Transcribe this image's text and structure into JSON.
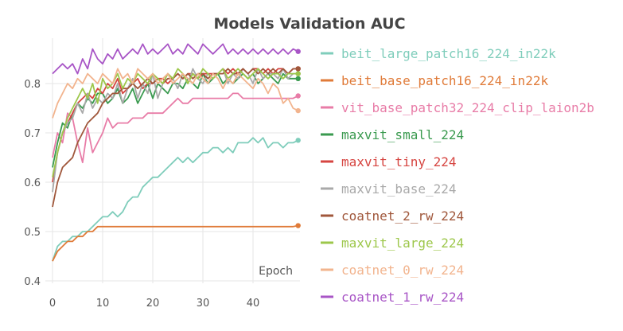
{
  "chart_data": {
    "type": "line",
    "title": "Models Validation AUC",
    "xlabel": "Epoch",
    "ylabel": "",
    "xlim": [
      0,
      50
    ],
    "ylim": [
      0.4,
      0.92
    ],
    "xticks": [
      0,
      10,
      20,
      30,
      40
    ],
    "yticks": [
      0.4,
      0.5,
      0.6,
      0.7,
      0.8
    ],
    "grid": true,
    "legend_position": "right",
    "series": [
      {
        "name": "beit_large_patch16_224_in22k",
        "color": "#7fcdbb",
        "values": [
          0.44,
          0.47,
          0.48,
          0.48,
          0.49,
          0.49,
          0.5,
          0.5,
          0.51,
          0.52,
          0.53,
          0.53,
          0.54,
          0.53,
          0.54,
          0.56,
          0.57,
          0.57,
          0.59,
          0.6,
          0.61,
          0.61,
          0.62,
          0.63,
          0.64,
          0.65,
          0.64,
          0.65,
          0.64,
          0.65,
          0.66,
          0.66,
          0.67,
          0.67,
          0.66,
          0.67,
          0.66,
          0.68,
          0.68,
          0.68,
          0.69,
          0.68,
          0.69,
          0.67,
          0.68,
          0.68,
          0.67,
          0.68,
          0.68,
          0.685
        ]
      },
      {
        "name": "beit_base_patch16_224_in22k",
        "color": "#e07b39",
        "values": [
          0.44,
          0.46,
          0.47,
          0.48,
          0.48,
          0.49,
          0.49,
          0.5,
          0.5,
          0.51,
          0.51,
          0.51,
          0.51,
          0.51,
          0.51,
          0.51,
          0.51,
          0.51,
          0.51,
          0.51,
          0.51,
          0.51,
          0.51,
          0.51,
          0.51,
          0.51,
          0.51,
          0.51,
          0.51,
          0.51,
          0.51,
          0.51,
          0.51,
          0.51,
          0.51,
          0.51,
          0.51,
          0.51,
          0.51,
          0.51,
          0.51,
          0.51,
          0.51,
          0.51,
          0.51,
          0.51,
          0.51,
          0.51,
          0.51,
          0.512
        ]
      },
      {
        "name": "vit_base_patch32_224_clip_laion2b",
        "color": "#e87ca7",
        "values": [
          0.65,
          0.7,
          0.68,
          0.74,
          0.73,
          0.68,
          0.64,
          0.71,
          0.66,
          0.68,
          0.7,
          0.73,
          0.71,
          0.72,
          0.72,
          0.72,
          0.73,
          0.73,
          0.73,
          0.74,
          0.74,
          0.74,
          0.74,
          0.75,
          0.76,
          0.77,
          0.76,
          0.76,
          0.77,
          0.77,
          0.77,
          0.77,
          0.77,
          0.77,
          0.77,
          0.77,
          0.78,
          0.78,
          0.77,
          0.77,
          0.77,
          0.77,
          0.77,
          0.77,
          0.77,
          0.77,
          0.77,
          0.77,
          0.77,
          0.775
        ]
      },
      {
        "name": "maxvit_small_224",
        "color": "#3a9a4f",
        "values": [
          0.63,
          0.68,
          0.72,
          0.71,
          0.74,
          0.76,
          0.75,
          0.77,
          0.76,
          0.78,
          0.78,
          0.76,
          0.77,
          0.79,
          0.76,
          0.77,
          0.79,
          0.76,
          0.78,
          0.8,
          0.77,
          0.8,
          0.79,
          0.78,
          0.8,
          0.8,
          0.79,
          0.81,
          0.8,
          0.79,
          0.82,
          0.8,
          0.81,
          0.82,
          0.8,
          0.81,
          0.8,
          0.81,
          0.82,
          0.81,
          0.82,
          0.8,
          0.81,
          0.82,
          0.81,
          0.8,
          0.82,
          0.81,
          0.81,
          0.81
        ]
      },
      {
        "name": "maxvit_tiny_224",
        "color": "#d64541",
        "values": [
          0.6,
          0.66,
          0.7,
          0.72,
          0.74,
          0.76,
          0.77,
          0.78,
          0.77,
          0.79,
          0.78,
          0.8,
          0.79,
          0.81,
          0.78,
          0.79,
          0.8,
          0.81,
          0.79,
          0.8,
          0.8,
          0.81,
          0.81,
          0.8,
          0.81,
          0.82,
          0.81,
          0.82,
          0.82,
          0.81,
          0.82,
          0.82,
          0.82,
          0.82,
          0.83,
          0.82,
          0.83,
          0.82,
          0.83,
          0.82,
          0.83,
          0.83,
          0.82,
          0.83,
          0.82,
          0.83,
          0.83,
          0.82,
          0.83,
          0.83
        ]
      },
      {
        "name": "maxvit_base_224",
        "color": "#a9a9a9",
        "values": [
          0.58,
          0.66,
          0.7,
          0.72,
          0.73,
          0.76,
          0.74,
          0.78,
          0.75,
          0.77,
          0.76,
          0.78,
          0.77,
          0.8,
          0.76,
          0.79,
          0.81,
          0.77,
          0.8,
          0.78,
          0.82,
          0.77,
          0.8,
          0.82,
          0.81,
          0.79,
          0.82,
          0.8,
          0.83,
          0.81,
          0.8,
          0.82,
          0.81,
          0.82,
          0.83,
          0.8,
          0.82,
          0.81,
          0.83,
          0.82,
          0.8,
          0.83,
          0.81,
          0.82,
          0.82,
          0.81,
          0.83,
          0.81,
          0.82,
          0.82
        ]
      },
      {
        "name": "coatnet_2_rw_224",
        "color": "#a0573b",
        "values": [
          0.55,
          0.6,
          0.63,
          0.64,
          0.65,
          0.68,
          0.7,
          0.72,
          0.73,
          0.74,
          0.76,
          0.77,
          0.78,
          0.78,
          0.79,
          0.79,
          0.8,
          0.79,
          0.8,
          0.81,
          0.8,
          0.81,
          0.8,
          0.81,
          0.81,
          0.82,
          0.81,
          0.82,
          0.81,
          0.82,
          0.82,
          0.81,
          0.82,
          0.82,
          0.82,
          0.83,
          0.82,
          0.82,
          0.83,
          0.82,
          0.83,
          0.82,
          0.83,
          0.82,
          0.83,
          0.82,
          0.83,
          0.82,
          0.83,
          0.83
        ]
      },
      {
        "name": "maxvit_large_224",
        "color": "#9dc74b",
        "values": [
          0.61,
          0.66,
          0.7,
          0.73,
          0.75,
          0.77,
          0.79,
          0.77,
          0.8,
          0.76,
          0.81,
          0.79,
          0.8,
          0.82,
          0.79,
          0.81,
          0.8,
          0.82,
          0.81,
          0.8,
          0.82,
          0.81,
          0.8,
          0.82,
          0.81,
          0.83,
          0.82,
          0.8,
          0.82,
          0.81,
          0.83,
          0.82,
          0.81,
          0.82,
          0.83,
          0.81,
          0.82,
          0.83,
          0.82,
          0.81,
          0.82,
          0.83,
          0.82,
          0.81,
          0.82,
          0.82,
          0.81,
          0.82,
          0.82,
          0.82
        ]
      },
      {
        "name": "coatnet_0_rw_224",
        "color": "#f2b48e",
        "values": [
          0.73,
          0.76,
          0.78,
          0.8,
          0.79,
          0.81,
          0.8,
          0.82,
          0.81,
          0.8,
          0.82,
          0.81,
          0.8,
          0.83,
          0.81,
          0.82,
          0.8,
          0.83,
          0.82,
          0.81,
          0.82,
          0.8,
          0.81,
          0.82,
          0.8,
          0.81,
          0.82,
          0.81,
          0.8,
          0.82,
          0.81,
          0.8,
          0.82,
          0.81,
          0.79,
          0.81,
          0.8,
          0.82,
          0.81,
          0.8,
          0.79,
          0.81,
          0.8,
          0.78,
          0.8,
          0.79,
          0.76,
          0.77,
          0.75,
          0.745
        ]
      },
      {
        "name": "coatnet_1_rw_224",
        "color": "#a855c6",
        "values": [
          0.82,
          0.83,
          0.84,
          0.83,
          0.84,
          0.82,
          0.85,
          0.83,
          0.87,
          0.85,
          0.84,
          0.86,
          0.85,
          0.87,
          0.85,
          0.86,
          0.87,
          0.86,
          0.88,
          0.86,
          0.87,
          0.86,
          0.87,
          0.88,
          0.86,
          0.87,
          0.86,
          0.88,
          0.87,
          0.86,
          0.88,
          0.87,
          0.86,
          0.87,
          0.88,
          0.86,
          0.87,
          0.86,
          0.87,
          0.86,
          0.87,
          0.86,
          0.87,
          0.86,
          0.87,
          0.86,
          0.87,
          0.86,
          0.87,
          0.865
        ]
      }
    ]
  }
}
